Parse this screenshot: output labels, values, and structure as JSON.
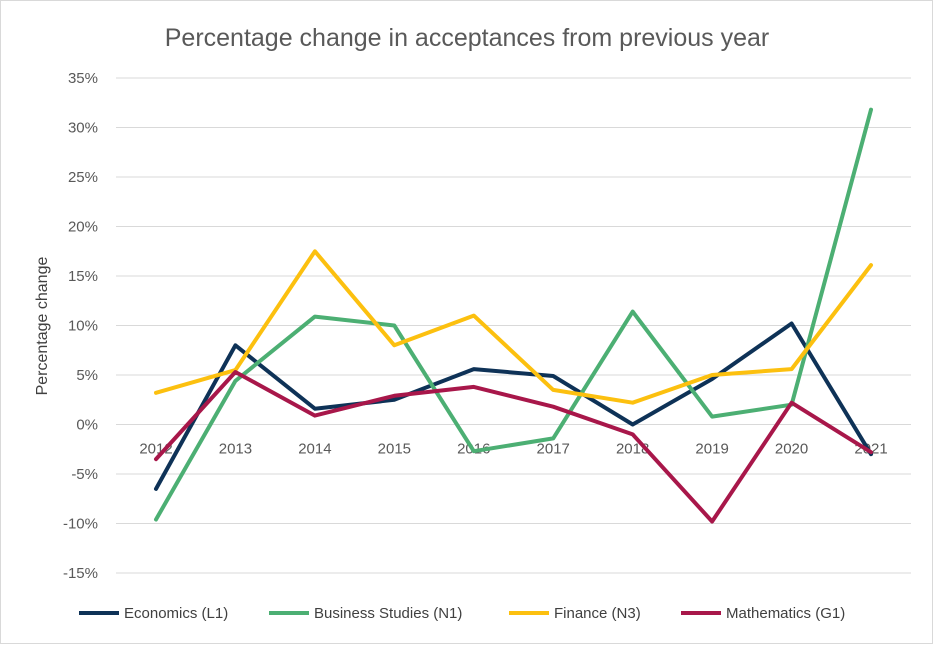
{
  "chart_data": {
    "type": "line",
    "title": "Percentage change in acceptances from previous year",
    "ylabel": "Percentage change",
    "xlabel": "",
    "categories": [
      "2012",
      "2013",
      "2014",
      "2015",
      "2016",
      "2017",
      "2018",
      "2019",
      "2020",
      "2021"
    ],
    "yticks": [
      "35%",
      "30%",
      "25%",
      "20%",
      "15%",
      "10%",
      "5%",
      "0%",
      "-5%",
      "-10%",
      "-15%"
    ],
    "ylim": [
      -15,
      35
    ],
    "grid": true,
    "legend_position": "bottom",
    "series": [
      {
        "name": "Economics (L1)",
        "color": "#0e3257",
        "values": [
          -6.5,
          8.0,
          1.6,
          2.5,
          5.6,
          4.9,
          0.0,
          4.6,
          10.2,
          -3.0
        ]
      },
      {
        "name": "Business Studies (N1)",
        "color": "#4caf73",
        "values": [
          -9.6,
          4.4,
          10.9,
          10.0,
          -2.7,
          -1.4,
          11.4,
          0.8,
          2.0,
          31.8
        ]
      },
      {
        "name": "Finance (N3)",
        "color": "#fcc00f",
        "values": [
          3.2,
          5.5,
          17.5,
          8.0,
          11.0,
          3.5,
          2.2,
          5.0,
          5.6,
          16.1
        ]
      },
      {
        "name": "Mathematics (G1)",
        "color": "#a8174a",
        "values": [
          -3.5,
          5.3,
          0.9,
          2.9,
          3.8,
          1.8,
          -1.0,
          -9.8,
          2.2,
          -2.8
        ]
      }
    ]
  }
}
